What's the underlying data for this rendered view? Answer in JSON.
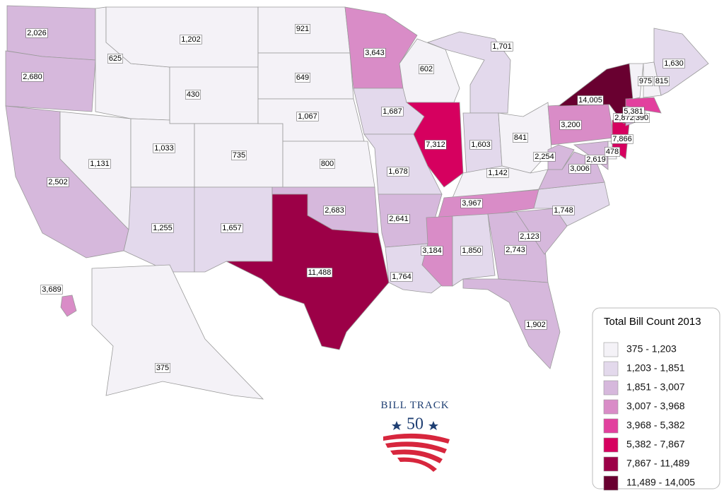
{
  "map": {
    "regions": {
      "values": [
        2026,
        2680,
        2502,
        625,
        1202,
        430,
        1131,
        1033,
        735,
        1255,
        1657,
        921,
        649,
        1067,
        800,
        2683,
        11488,
        3643,
        1687,
        1678,
        2641,
        1764,
        602,
        7312,
        1701,
        1603,
        841,
        1142,
        3967,
        3184,
        1850,
        2743,
        1902,
        2123,
        1748,
        3006,
        2254,
        2619,
        478,
        3200,
        7866,
        14005,
        2872,
        390,
        5381,
        975,
        815,
        1630,
        375,
        3689
      ],
      "value_labels": [
        "2,026",
        "2,680",
        "2,502",
        "625",
        "1,202",
        "430",
        "1,131",
        "1,033",
        "735",
        "1,255",
        "1,657",
        "921",
        "649",
        "1,067",
        "800",
        "2,683",
        "11,488",
        "3,643",
        "1,687",
        "1,678",
        "2,641",
        "1,764",
        "602",
        "7,312",
        "1,701",
        "1,603",
        "841",
        "1,142",
        "3,967",
        "3,184",
        "1,850",
        "2,743",
        "1,902",
        "2,123",
        "1,748",
        "3,006",
        "2,254",
        "2,619",
        "478",
        "3,200",
        "7,866",
        "14,005",
        "2,872",
        "390",
        "5,381",
        "975",
        "815",
        "1,630",
        "375",
        "3,689"
      ]
    },
    "legend": {
      "title": "Total Bill Count 2013",
      "bins": [
        {
          "label": "375 - 1,203",
          "min": 375,
          "max": 1203,
          "color": "#f4f2f7"
        },
        {
          "label": "1,203 - 1,851",
          "min": 1203,
          "max": 1851,
          "color": "#e3d9ec"
        },
        {
          "label": "1,851 - 3,007",
          "min": 1851,
          "max": 3007,
          "color": "#d6b8dc"
        },
        {
          "label": "3,007 - 3,968",
          "min": 3007,
          "max": 3968,
          "color": "#d98cc7"
        },
        {
          "label": "3,968 - 5,382",
          "min": 3968,
          "max": 5382,
          "color": "#e2409e"
        },
        {
          "label": "5,382 - 7,867",
          "min": 5382,
          "max": 7867,
          "color": "#d6005f"
        },
        {
          "label": "7,867 - 11,489",
          "min": 7867,
          "max": 11489,
          "color": "#9c0047"
        },
        {
          "label": "11,489 - 14,005",
          "min": 11489,
          "max": 14005,
          "color": "#690030"
        }
      ]
    }
  },
  "logo": {
    "name": "BILL TRACK",
    "number": "50"
  }
}
